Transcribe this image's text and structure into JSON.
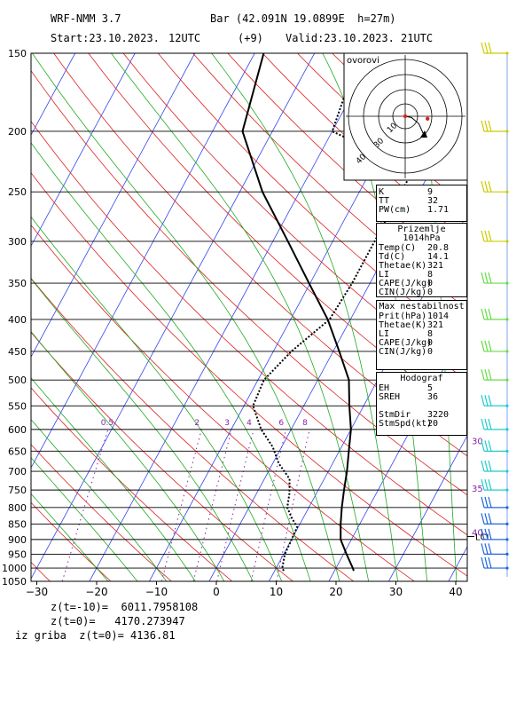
{
  "header": {
    "model": "WRF-NMM 3.7",
    "station": "Bar (42.091N 19.0899E  h=27m)",
    "start": "Start:23.10.2023.",
    "start_time": "12UTC",
    "offset": "(+9)",
    "valid": "Valid:23.10.2023.",
    "valid_time": "21UTC"
  },
  "colors": {
    "isotherm": "#3344ee",
    "dry_adiabat": "#dd2222",
    "moist_adiabat": "#22aa22",
    "mixing_ratio": "#8822aa",
    "wind_warm": "#cccc00",
    "wind_green": "#66dd44",
    "wind_cyan": "#22cccc",
    "wind_blue": "#2266dd"
  },
  "chart_data": {
    "type": "line",
    "xlabel": "",
    "ylabel": "",
    "x_ticks": [
      -30,
      -20,
      -10,
      0,
      10,
      20,
      30,
      40
    ],
    "xlim": [
      -30,
      42
    ],
    "pressure_ticks": [
      150,
      200,
      250,
      300,
      350,
      400,
      450,
      500,
      550,
      600,
      650,
      700,
      750,
      800,
      850,
      900,
      950,
      1000,
      1050
    ],
    "y_scale": "log-pressure",
    "mixing_ratio_labels": [
      "0.5",
      "2",
      "3",
      "4",
      "6",
      "8"
    ],
    "mixing_ratio_values": [
      0.5,
      2,
      3,
      4,
      6,
      8
    ],
    "lcl_label": "LCL",
    "lcl_pressure": 890,
    "series": [
      {
        "name": "",
        "role": "temperature",
        "style": "solid",
        "pressure": [
          1010,
          1000,
          950,
          900,
          850,
          800,
          750,
          700,
          650,
          600,
          550,
          500,
          450,
          400,
          350,
          300,
          250,
          200,
          150
        ],
        "temp": [
          23.2,
          22.8,
          20.5,
          18.2,
          16.8,
          15.5,
          14.3,
          13.1,
          11.6,
          10.0,
          7.6,
          5.2,
          1.0,
          -3.8,
          -10.2,
          -17.5,
          -26.2,
          -35.0,
          -38.5
        ]
      },
      {
        "name": "",
        "role": "dewpoint",
        "style": "dotted",
        "pressure": [
          1010,
          1000,
          950,
          900,
          860,
          830,
          800,
          760,
          720,
          680,
          640,
          600,
          550,
          500,
          450,
          400,
          350,
          300,
          250,
          230,
          200,
          150
        ],
        "temp": [
          11.5,
          11.0,
          10.2,
          10.0,
          9.8,
          8.0,
          6.4,
          5.5,
          4.2,
          1.0,
          -1.5,
          -5.0,
          -8.5,
          -9.0,
          -7.0,
          -3.5,
          -3.0,
          -3.0,
          -3.0,
          -3.0,
          -20.0,
          -22.5
        ]
      }
    ],
    "wind_barbs": [
      {
        "pressure": 150,
        "color_key": "wind_warm"
      },
      {
        "pressure": 200,
        "color_key": "wind_warm"
      },
      {
        "pressure": 250,
        "color_key": "wind_warm"
      },
      {
        "pressure": 300,
        "color_key": "wind_warm"
      },
      {
        "pressure": 350,
        "color_key": "wind_green"
      },
      {
        "pressure": 400,
        "color_key": "wind_green"
      },
      {
        "pressure": 450,
        "color_key": "wind_green"
      },
      {
        "pressure": 500,
        "color_key": "wind_green"
      },
      {
        "pressure": 550,
        "color_key": "wind_cyan"
      },
      {
        "pressure": 600,
        "color_key": "wind_cyan"
      },
      {
        "pressure": 650,
        "color_key": "wind_cyan"
      },
      {
        "pressure": 700,
        "color_key": "wind_cyan"
      },
      {
        "pressure": 750,
        "color_key": "wind_cyan"
      },
      {
        "pressure": 800,
        "color_key": "wind_blue"
      },
      {
        "pressure": 850,
        "color_key": "wind_blue"
      },
      {
        "pressure": 900,
        "color_key": "wind_blue"
      },
      {
        "pressure": 950,
        "color_key": "wind_blue"
      },
      {
        "pressure": 1000,
        "color_key": "wind_blue"
      }
    ],
    "side_labels": [
      {
        "text": "30",
        "pressure": 625
      },
      {
        "text": "35",
        "pressure": 745
      },
      {
        "text": "40",
        "pressure": 875
      }
    ],
    "hodograph": {
      "title": "ovorovi",
      "ring_labels": [
        "10",
        "30",
        "40"
      ],
      "trace": [
        [
          0,
          0
        ],
        [
          1.0,
          -0.2
        ],
        [
          2.2,
          -1.2
        ],
        [
          3.0,
          -3.0
        ]
      ],
      "storm_motion": [
        3.6,
        -0.4
      ]
    }
  },
  "panels": {
    "indices": {
      "title": "",
      "rows": [
        {
          "k": "K",
          "v": "9"
        },
        {
          "k": "TT",
          "v": "32"
        },
        {
          "k": "PW(cm)",
          "v": "1.71"
        }
      ]
    },
    "surface": {
      "title": "Prizemlje 1014hPa",
      "rows": [
        {
          "k": "Temp(C)",
          "v": "20.8"
        },
        {
          "k": "Td(C)",
          "v": "14.1"
        },
        {
          "k": "Thetae(K)",
          "v": "321"
        },
        {
          "k": "LI",
          "v": "8"
        },
        {
          "k": "CAPE(J/kg)",
          "v": "0"
        },
        {
          "k": "CIN(J/kg)",
          "v": "0"
        }
      ]
    },
    "max_instab": {
      "title": "Max nestabilnost",
      "rows": [
        {
          "k": "Prit(hPa)",
          "v": "1014"
        },
        {
          "k": "Thetae(K)",
          "v": "321"
        },
        {
          "k": "LI",
          "v": "8"
        },
        {
          "k": "CAPE(J/kg)",
          "v": "0"
        },
        {
          "k": "CIN(J/kg)",
          "v": "0"
        }
      ]
    },
    "hodograf": {
      "title": "Hodograf",
      "rows": [
        {
          "k": "EH",
          "v": "5"
        },
        {
          "k": "SREH",
          "v": "36"
        },
        {
          "k": "",
          "v": ""
        },
        {
          "k": "StmDir",
          "v": "3220"
        },
        {
          "k": "StmSpd(kt)",
          "v": "20"
        }
      ]
    }
  },
  "footer": {
    "line1": "z(t=-10)=  6011.7958108",
    "line2": "z(t=0)=   4170.273947",
    "line3": "iz griba  z(t=0)= 4136.81"
  }
}
